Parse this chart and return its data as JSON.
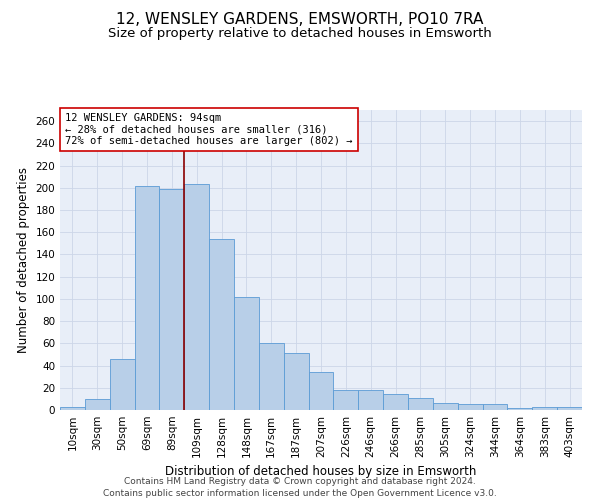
{
  "title": "12, WENSLEY GARDENS, EMSWORTH, PO10 7RA",
  "subtitle": "Size of property relative to detached houses in Emsworth",
  "xlabel": "Distribution of detached houses by size in Emsworth",
  "ylabel": "Number of detached properties",
  "categories": [
    "10sqm",
    "30sqm",
    "50sqm",
    "69sqm",
    "89sqm",
    "109sqm",
    "128sqm",
    "148sqm",
    "167sqm",
    "187sqm",
    "207sqm",
    "226sqm",
    "246sqm",
    "266sqm",
    "285sqm",
    "305sqm",
    "324sqm",
    "344sqm",
    "364sqm",
    "383sqm",
    "403sqm"
  ],
  "values": [
    3,
    10,
    46,
    202,
    199,
    203,
    154,
    102,
    60,
    51,
    34,
    18,
    18,
    14,
    11,
    6,
    5,
    5,
    2,
    3,
    3
  ],
  "bar_color": "#b8cfe8",
  "bar_edge_color": "#5b9bd5",
  "vline_x": 4.5,
  "vline_color": "#8b0000",
  "annotation_text": "12 WENSLEY GARDENS: 94sqm\n← 28% of detached houses are smaller (316)\n72% of semi-detached houses are larger (802) →",
  "annotation_box_color": "white",
  "annotation_box_edge_color": "#cc0000",
  "ylim": [
    0,
    270
  ],
  "yticks": [
    0,
    20,
    40,
    60,
    80,
    100,
    120,
    140,
    160,
    180,
    200,
    220,
    240,
    260
  ],
  "grid_color": "#ccd6e8",
  "bg_color": "#e8eef8",
  "footer_line1": "Contains HM Land Registry data © Crown copyright and database right 2024.",
  "footer_line2": "Contains public sector information licensed under the Open Government Licence v3.0.",
  "title_fontsize": 11,
  "subtitle_fontsize": 9.5,
  "axis_label_fontsize": 8.5,
  "tick_fontsize": 7.5,
  "annotation_fontsize": 7.5,
  "footer_fontsize": 6.5
}
